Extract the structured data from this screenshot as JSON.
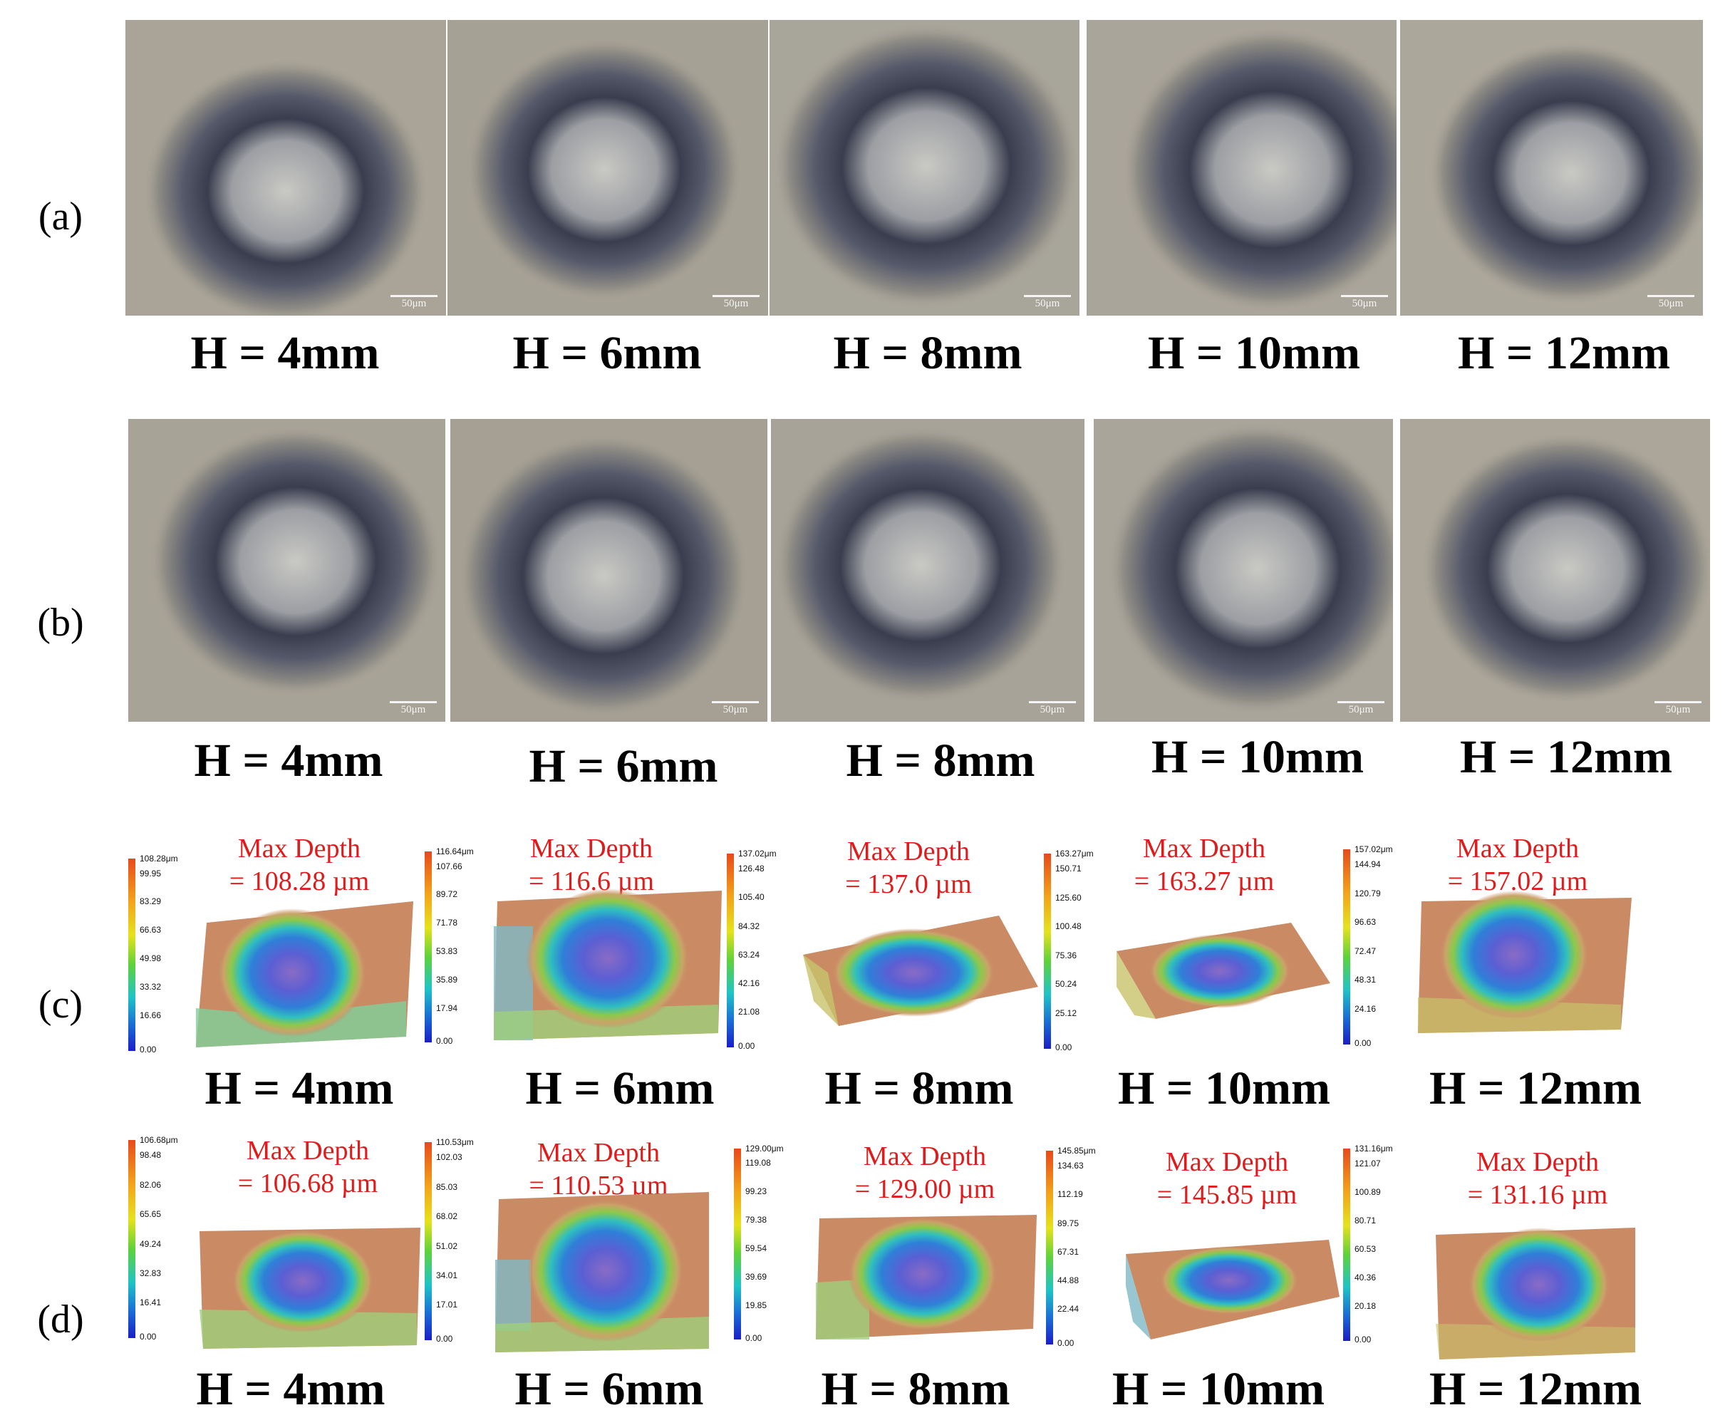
{
  "rows": [
    {
      "label": "(a)",
      "h_labels": [
        "H = 4mm",
        "H = 6mm",
        "H = 8mm",
        "H = 10mm",
        "H = 12mm"
      ],
      "scale_label": "50μm"
    },
    {
      "label": "(b)",
      "h_labels": [
        "H = 4mm",
        "H = 6mm",
        "H = 8mm",
        "H = 10mm",
        "H = 12mm"
      ],
      "scale_label": "50μm"
    },
    {
      "label": "(c)",
      "h_labels": [
        "H = 4mm",
        "H = 6mm",
        "H = 8mm",
        "H = 10mm",
        "H = 12mm"
      ],
      "panels": [
        {
          "depth_title": "Max Depth",
          "depth_value": "= 108.28 µm",
          "ticks": [
            "108.28μm",
            "99.95",
            "83.29",
            "66.63",
            "49.98",
            "33.32",
            "16.66",
            "0.00"
          ]
        },
        {
          "depth_title": "Max Depth",
          "depth_value": "= 116.6 µm",
          "ticks": [
            "116.64μm",
            "107.66",
            "89.72",
            "71.78",
            "53.83",
            "35.89",
            "17.94",
            "0.00"
          ]
        },
        {
          "depth_title": "Max Depth",
          "depth_value": "= 137.0 µm",
          "ticks": [
            "137.02μm",
            "126.48",
            "105.40",
            "84.32",
            "63.24",
            "42.16",
            "21.08",
            "0.00"
          ]
        },
        {
          "depth_title": "Max Depth",
          "depth_value": "= 163.27 µm",
          "ticks": [
            "163.27μm",
            "150.71",
            "125.60",
            "100.48",
            "75.36",
            "50.24",
            "25.12",
            "0.00"
          ]
        },
        {
          "depth_title": "Max Depth",
          "depth_value": "= 157.02 µm",
          "ticks": [
            "157.02μm",
            "144.94",
            "120.79",
            "96.63",
            "72.47",
            "48.31",
            "24.16",
            "0.00"
          ]
        }
      ]
    },
    {
      "label": "(d)",
      "h_labels": [
        "H = 4mm",
        "H = 6mm",
        "H = 8mm",
        "H = 10mm",
        "H = 12mm"
      ],
      "panels": [
        {
          "depth_title": "Max Depth",
          "depth_value": "= 106.68 µm",
          "ticks": [
            "106.68μm",
            "98.48",
            "82.06",
            "65.65",
            "49.24",
            "32.83",
            "16.41",
            "0.00"
          ]
        },
        {
          "depth_title": "Max Depth",
          "depth_value": "= 110.53 µm",
          "ticks": [
            "110.53μm",
            "102.03",
            "85.03",
            "68.02",
            "51.02",
            "34.01",
            "17.01",
            "0.00"
          ]
        },
        {
          "depth_title": "Max Depth",
          "depth_value": "= 129.00 µm",
          "ticks": [
            "129.00μm",
            "119.08",
            "99.23",
            "79.38",
            "59.54",
            "39.69",
            "19.85",
            "0.00"
          ]
        },
        {
          "depth_title": "Max Depth",
          "depth_value": "= 145.85 µm",
          "ticks": [
            "145.85μm",
            "134.63",
            "112.19",
            "89.75",
            "67.31",
            "44.88",
            "22.44",
            "0.00"
          ]
        },
        {
          "depth_title": "Max Depth",
          "depth_value": "= 131.16 µm",
          "ticks": [
            "131.16μm",
            "121.07",
            "100.89",
            "80.71",
            "60.53",
            "40.36",
            "20.18",
            "0.00"
          ]
        }
      ]
    }
  ]
}
